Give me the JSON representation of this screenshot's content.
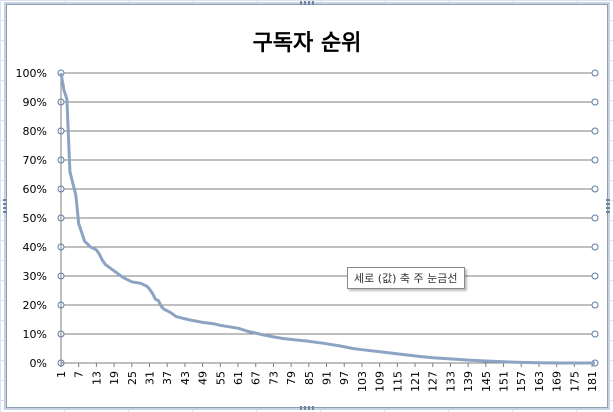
{
  "chart_data": {
    "type": "line",
    "title": "구독자 순위",
    "xlabel": "",
    "ylabel": "",
    "ylim": [
      0,
      100
    ],
    "xlim": [
      1,
      182
    ],
    "yticks": [
      "0%",
      "10%",
      "20%",
      "30%",
      "40%",
      "50%",
      "60%",
      "70%",
      "80%",
      "90%",
      "100%"
    ],
    "xticks": [
      "1",
      "7",
      "13",
      "19",
      "25",
      "31",
      "37",
      "43",
      "49",
      "55",
      "61",
      "67",
      "73",
      "79",
      "85",
      "91",
      "97",
      "103",
      "109",
      "115",
      "121",
      "127",
      "133",
      "139",
      "145",
      "151",
      "157",
      "163",
      "169",
      "175",
      "181"
    ],
    "grid": true,
    "legend": "none",
    "series_color": "#8da3c4",
    "gridline_color": "#7f7f7f",
    "series": [
      {
        "x": [
          1,
          2,
          3,
          4,
          5,
          6,
          7,
          8,
          9,
          10,
          11,
          12,
          13,
          14,
          15,
          16,
          18,
          20,
          22,
          24,
          25,
          26,
          28,
          30,
          31,
          32,
          33,
          34,
          35,
          36,
          38,
          40,
          42,
          45,
          49,
          53,
          55,
          58,
          61,
          64,
          67,
          70,
          73,
          76,
          80,
          85,
          90,
          95,
          100,
          103,
          108,
          113,
          118,
          122,
          127,
          133,
          139,
          145,
          151,
          157,
          163,
          170,
          176,
          182
        ],
        "values": [
          100,
          94,
          91,
          66,
          62,
          58,
          48,
          45,
          42,
          41,
          40,
          39.5,
          39,
          37.5,
          35.5,
          34,
          32.5,
          31,
          29.5,
          28.5,
          28,
          27.8,
          27.5,
          26.5,
          25.5,
          24,
          22,
          21.5,
          19.5,
          18.5,
          17.5,
          16,
          15.5,
          14.8,
          14,
          13.5,
          13,
          12.5,
          12,
          11,
          10.3,
          9.6,
          9,
          8.5,
          8,
          7.5,
          6.8,
          6,
          5,
          4.6,
          4,
          3.4,
          2.8,
          2.3,
          1.8,
          1.4,
          1,
          0.7,
          0.4,
          0.2,
          0.1,
          0,
          0,
          0
        ]
      }
    ]
  },
  "tooltip": {
    "text": "세로 (값)  축  주 눈금선"
  }
}
